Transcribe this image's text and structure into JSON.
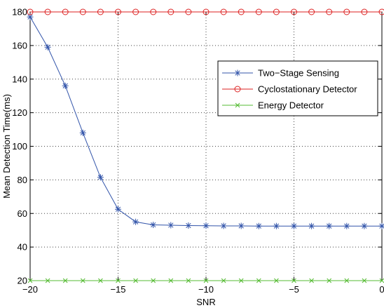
{
  "chart_data": {
    "type": "line",
    "title": "",
    "xlabel": "SNR",
    "ylabel": "Mean Detection Time(ms)",
    "xlim": [
      -20,
      0
    ],
    "ylim": [
      20,
      180
    ],
    "xticks": [
      -20,
      -15,
      -10,
      -5,
      0
    ],
    "xtick_labels": [
      "−20",
      "−15",
      "−10",
      "−5",
      "0"
    ],
    "yticks": [
      20,
      40,
      60,
      80,
      100,
      120,
      140,
      160,
      180
    ],
    "yticks_labels": [
      "20",
      "40",
      "60",
      "80",
      "100",
      "120",
      "140",
      "160",
      "180"
    ],
    "grid": true,
    "legend_position": "upper-right",
    "x": [
      -20,
      -19,
      -18,
      -17,
      -16,
      -15,
      -14,
      -13,
      -12,
      -11,
      -10,
      -9,
      -8,
      -7,
      -6,
      -5,
      -4,
      -3,
      -2,
      -1,
      0
    ],
    "series": [
      {
        "name": "Two−Stage Sensing",
        "color": "#3355aa",
        "marker": "asterisk",
        "values": [
          177,
          159,
          136,
          108,
          81.5,
          62.5,
          55,
          53.2,
          53,
          52.8,
          52.7,
          52.6,
          52.6,
          52.5,
          52.5,
          52.5,
          52.5,
          52.5,
          52.5,
          52.5,
          52.5
        ]
      },
      {
        "name": "Cyclostationary Detector",
        "color": "#dd2222",
        "marker": "circle",
        "values": [
          180,
          180,
          180,
          180,
          180,
          180,
          180,
          180,
          180,
          180,
          180,
          180,
          180,
          180,
          180,
          180,
          180,
          180,
          180,
          180,
          180
        ]
      },
      {
        "name": "Energy Detector",
        "color": "#55bb33",
        "marker": "x",
        "values": [
          20,
          20,
          20,
          20,
          20,
          20,
          20,
          20,
          20,
          20,
          20,
          20,
          20,
          20,
          20,
          20,
          20,
          20,
          20,
          20,
          20
        ]
      }
    ]
  }
}
